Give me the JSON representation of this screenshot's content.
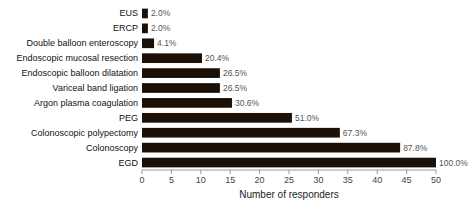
{
  "chart_data": {
    "type": "bar",
    "orientation": "horizontal",
    "categories": [
      "EGD",
      "Colonoscopy",
      "Colonoscopic polypectomy",
      "PEG",
      "Argon plasma coagulation",
      "Variceal band ligation",
      "Endoscopic balloon dilatation",
      "Endoscopic mucosal resection",
      "Double balloon enteroscopy",
      "ERCP",
      "EUS"
    ],
    "values": [
      50.0,
      43.9,
      33.65,
      25.5,
      15.3,
      13.25,
      13.25,
      10.2,
      2.05,
      1.0,
      1.0
    ],
    "percentage_labels": [
      "100.0%",
      "87.8%",
      "67.3%",
      "51.0%",
      "30.6%",
      "26.5%",
      "26.5%",
      "20.4%",
      "4.1%",
      "2.0%",
      "2.0%"
    ],
    "color": "#1a1008",
    "xlabel": "Number of responders",
    "xlim": [
      0,
      50
    ],
    "xticks": [
      0,
      5,
      10,
      15,
      20,
      25,
      30,
      35,
      40,
      45,
      50
    ]
  }
}
